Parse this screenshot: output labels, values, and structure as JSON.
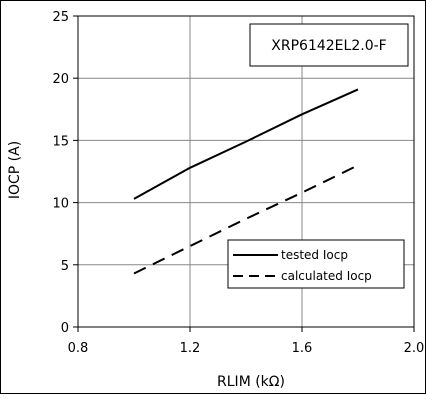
{
  "chart_data": {
    "type": "line",
    "title": "",
    "xlabel": "RLIM (kΩ)",
    "ylabel": "IOCP (A)",
    "xlim": [
      0.8,
      2.0
    ],
    "ylim": [
      0,
      25
    ],
    "xticks": [
      0.8,
      1.2,
      1.6,
      2.0
    ],
    "xtick_labels": [
      "0.8",
      "1.2",
      "1.6",
      "2.0"
    ],
    "yticks": [
      0,
      5,
      10,
      15,
      20,
      25
    ],
    "ytick_labels": [
      "0",
      "5",
      "10",
      "15",
      "20",
      "25"
    ],
    "grid": true,
    "legend_position": "bottom-right",
    "annotation": "XRP6142EL2.0-F",
    "series": [
      {
        "name": "tested Iocp",
        "style": "solid",
        "color": "#000000",
        "x": [
          1.0,
          1.2,
          1.4,
          1.6,
          1.8
        ],
        "y": [
          10.3,
          12.8,
          14.9,
          17.1,
          19.1
        ]
      },
      {
        "name": "calculated Iocp",
        "style": "dashed",
        "color": "#000000",
        "x": [
          1.0,
          1.2,
          1.4,
          1.6,
          1.8
        ],
        "y": [
          4.3,
          6.5,
          8.7,
          10.8,
          13.0
        ]
      }
    ]
  }
}
